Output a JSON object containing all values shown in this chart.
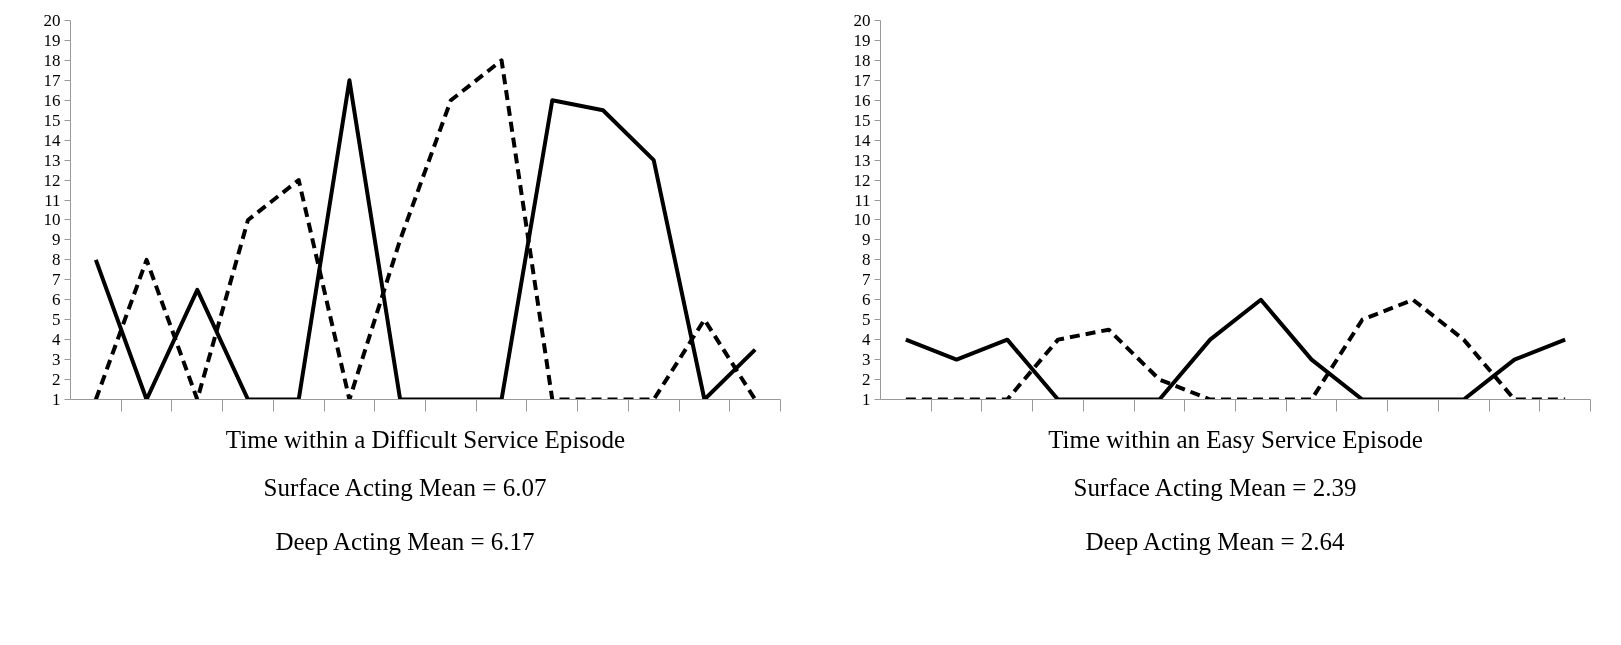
{
  "chart_data": [
    {
      "type": "line",
      "xlabel": "Time within a Difficult Service Episode",
      "categories": [
        null,
        null,
        null,
        null,
        null,
        null,
        null,
        null,
        null,
        null,
        null,
        null,
        null,
        null
      ],
      "series": [
        {
          "color": "#000000",
          "line_style": "solid",
          "values": [
            8,
            1,
            6.5,
            1,
            1,
            17,
            1,
            1,
            1,
            16,
            15.5,
            13,
            1,
            3.5
          ]
        },
        {
          "color": "#000000",
          "line_style": "dashed",
          "values": [
            1,
            8,
            1,
            10,
            12,
            1,
            9,
            16,
            18,
            1,
            1,
            1,
            5,
            1
          ]
        }
      ],
      "ylim": [
        1,
        20
      ],
      "yticks": [
        1,
        2,
        3,
        4,
        5,
        6,
        7,
        8,
        9,
        10,
        11,
        12,
        13,
        14,
        15,
        16,
        17,
        18,
        19,
        20
      ],
      "grid": false,
      "marker": "none",
      "annotations": [
        "Surface Acting Mean = 6.07",
        "Deep Acting Mean = 6.17"
      ]
    },
    {
      "type": "line",
      "xlabel": "Time within an Easy Service Episode",
      "categories": [
        null,
        null,
        null,
        null,
        null,
        null,
        null,
        null,
        null,
        null,
        null,
        null,
        null,
        null
      ],
      "series": [
        {
          "color": "#000000",
          "line_style": "solid",
          "values": [
            4,
            3,
            4,
            1,
            1,
            1,
            4,
            6,
            3,
            1,
            1,
            1,
            3,
            4
          ]
        },
        {
          "color": "#000000",
          "line_style": "dashed",
          "values": [
            1,
            1,
            1,
            4,
            4.5,
            2,
            1,
            1,
            1,
            5,
            6,
            4,
            1,
            1
          ]
        }
      ],
      "ylim": [
        1,
        20
      ],
      "yticks": [
        1,
        2,
        3,
        4,
        5,
        6,
        7,
        8,
        9,
        10,
        11,
        12,
        13,
        14,
        15,
        16,
        17,
        18,
        19,
        20
      ],
      "grid": false,
      "marker": "none",
      "annotations": [
        "Surface Acting Mean = 2.39",
        "Deep Acting Mean = 2.64"
      ]
    }
  ]
}
